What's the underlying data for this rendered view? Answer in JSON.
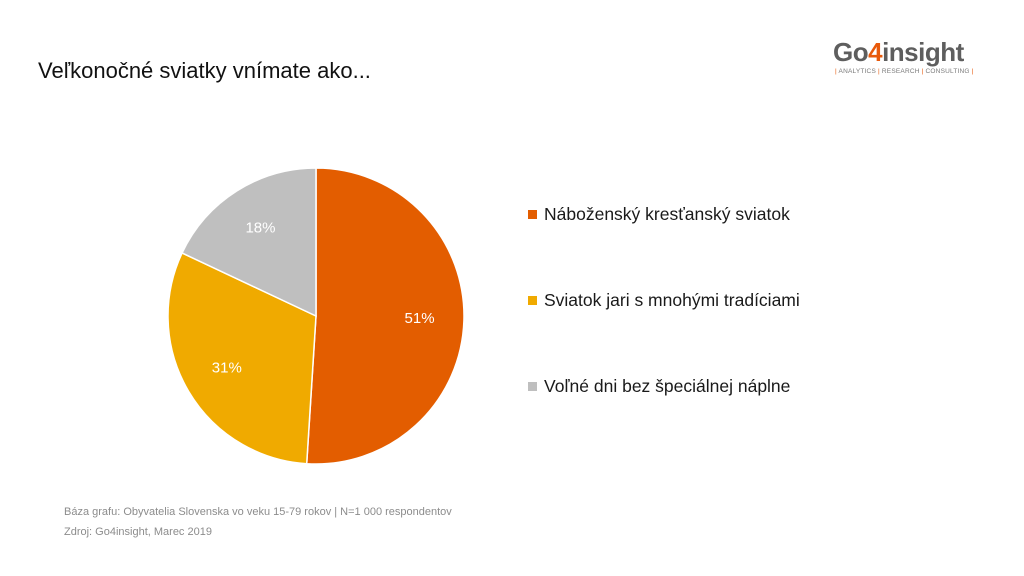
{
  "slide": {
    "title": "Veľkonočné sviatky vnímate ako..."
  },
  "logo": {
    "part1": "Go",
    "part2": "4",
    "part3": "insight",
    "tagline_parts": [
      "ANALYTICS",
      "RESEARCH",
      "CONSULTING"
    ],
    "colors": {
      "gray": "#5e5e5e",
      "orange": "#e8590a"
    }
  },
  "chart_data": {
    "type": "pie",
    "title": "Veľkonočné sviatky vnímate ako...",
    "categories": [
      "Náboženský kresťanský sviatok",
      "Sviatok jari s mnohými tradíciami",
      "Voľné dni bez špeciálnej náplne"
    ],
    "values": [
      51,
      31,
      18
    ],
    "value_labels": [
      "51%",
      "31%",
      "18%"
    ],
    "colors": [
      "#e35d00",
      "#f0aa00",
      "#bfbfbf"
    ],
    "start_angle": "12 o'clock",
    "direction": "clockwise",
    "legend_position": "right",
    "data_label_color": "#ffffff"
  },
  "footnotes": {
    "base": "Báza grafu: Obyvatelia Slovenska vo veku 15-79 rokov | N=1 000 respondentov",
    "source": "Zdroj: Go4insight, Marec 2019"
  }
}
